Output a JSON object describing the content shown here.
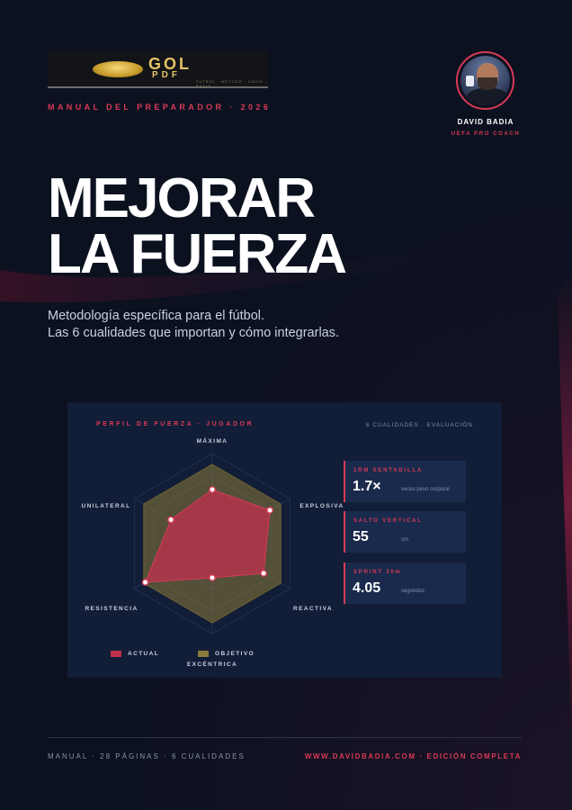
{
  "logo": {
    "main": "GOL",
    "sub": "PDF",
    "tagline": "FÚTBOL · MÉTODO · DAVID BADIA"
  },
  "eyebrow": "MANUAL DEL PREPARADOR · 2026",
  "coach": {
    "name": "DAVID BADIA",
    "role": "UEFA PRO COACH"
  },
  "title": {
    "line1": "MEJORAR",
    "line2": "LA FUERZA"
  },
  "subtitle": {
    "line1": "Metodología específica para el fútbol.",
    "line2": "Las 6 cualidades que importan y cómo integrarlas."
  },
  "card": {
    "title": "PERFIL DE FUERZA · JUGADOR",
    "meta": "6 CUALIDADES · EVALUACIÓN"
  },
  "chart_data": {
    "type": "radar",
    "axes": [
      "MÁXIMA",
      "EXPLOSIVA",
      "REACTIVA",
      "EXCÉNTRICA",
      "RESISTENCIA",
      "UNILATERAL"
    ],
    "range": [
      0,
      100
    ],
    "series": [
      {
        "name": "ACTUAL",
        "values": [
          60,
          74,
          66,
          38,
          86,
          53
        ],
        "color": "#c0304d"
      },
      {
        "name": "OBJETIVO",
        "values": [
          88,
          88,
          88,
          88,
          88,
          88
        ],
        "color": "#8a7a3a"
      }
    ],
    "grid_levels": 3,
    "legend": "bottom"
  },
  "stats": [
    {
      "label": "1RM SENTADILLA",
      "value": "1.7×",
      "unit": "veces peso corporal"
    },
    {
      "label": "SALTO VERTICAL",
      "value": "55",
      "unit": "cm"
    },
    {
      "label": "SPRINT 30m",
      "value": "4.05",
      "unit": "segundos"
    }
  ],
  "footer": {
    "left": "MANUAL · 28 PÁGINAS · 6 CUALIDADES",
    "right": "WWW.DAVIDBADIA.COM · EDICIÓN COMPLETA"
  },
  "colors": {
    "background": "#0c1120",
    "accent": "#d83a55",
    "card": "#121d37",
    "stat_box": "#1a2a4c"
  }
}
